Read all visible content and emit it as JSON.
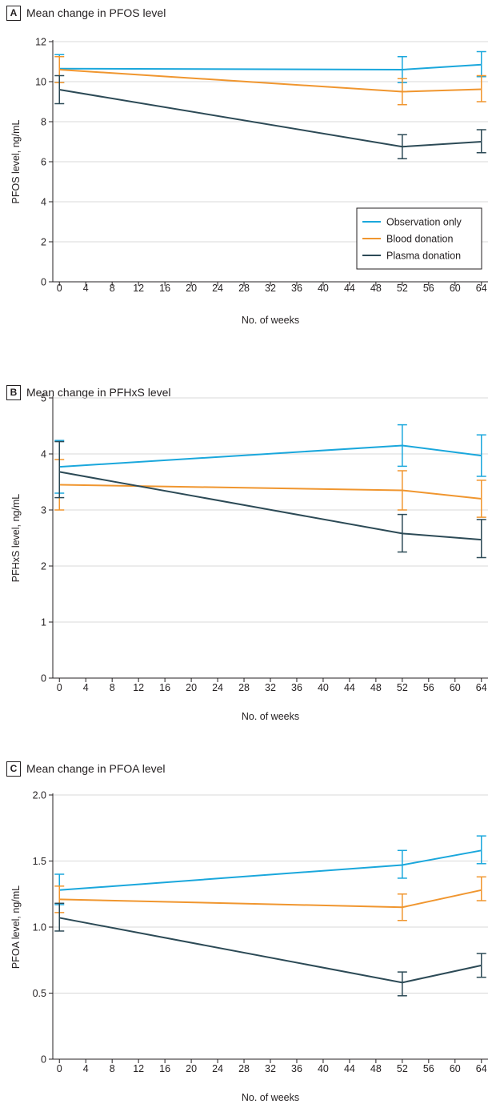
{
  "colors": {
    "observation": "#1aa7dc",
    "blood": "#f0962f",
    "plasma": "#2c4a56",
    "grid": "#d9d9d9",
    "axis": "#231f20"
  },
  "legend": {
    "items": [
      {
        "label": "Observation only",
        "color": "#1aa7dc"
      },
      {
        "label": "Blood donation",
        "color": "#f0962f"
      },
      {
        "label": "Plasma donation",
        "color": "#2c4a56"
      }
    ]
  },
  "chart_data": [
    {
      "id": "A",
      "type": "line",
      "title": "Mean change in PFOS level",
      "xlabel": "No. of weeks",
      "ylabel": "PFOS level, ng/mL",
      "xlim": [
        -1,
        65
      ],
      "ylim": [
        0,
        12
      ],
      "xticks": [
        0,
        4,
        8,
        12,
        16,
        20,
        24,
        28,
        32,
        36,
        40,
        44,
        48,
        52,
        56,
        60,
        64
      ],
      "yticks": [
        0,
        2,
        4,
        6,
        8,
        10,
        12
      ],
      "ytick_labels": [
        "0",
        "2",
        "4",
        "6",
        "8",
        "10",
        "12"
      ],
      "grid": true,
      "legend": "bottom-right",
      "series": [
        {
          "name": "Observation only",
          "color": "#1aa7dc",
          "x": [
            0,
            52,
            64
          ],
          "y": [
            10.65,
            10.6,
            10.85
          ],
          "lo": [
            9.95,
            9.95,
            10.25
          ],
          "hi": [
            11.35,
            11.25,
            11.5
          ]
        },
        {
          "name": "Blood donation",
          "color": "#f0962f",
          "x": [
            0,
            52,
            64
          ],
          "y": [
            10.6,
            9.5,
            9.62
          ],
          "lo": [
            9.95,
            8.85,
            9.0
          ],
          "hi": [
            11.25,
            10.15,
            10.3
          ]
        },
        {
          "name": "Plasma donation",
          "color": "#2c4a56",
          "x": [
            0,
            52,
            64
          ],
          "y": [
            9.6,
            6.75,
            7.0
          ],
          "lo": [
            8.9,
            6.15,
            6.45
          ],
          "hi": [
            10.3,
            7.35,
            7.6
          ]
        }
      ]
    },
    {
      "id": "B",
      "type": "line",
      "title": "Mean change in PFHxS level",
      "xlabel": "No. of weeks",
      "ylabel": "PFHxS level, ng/mL",
      "xlim": [
        -1,
        65
      ],
      "ylim": [
        0,
        5
      ],
      "xticks": [
        0,
        4,
        8,
        12,
        16,
        20,
        24,
        28,
        32,
        36,
        40,
        44,
        48,
        52,
        56,
        60,
        64
      ],
      "yticks": [
        0,
        1,
        2,
        3,
        4,
        5
      ],
      "ytick_labels": [
        "0",
        "1",
        "2",
        "3",
        "4",
        "5"
      ],
      "grid": true,
      "legend": "none",
      "series": [
        {
          "name": "Observation only",
          "color": "#1aa7dc",
          "x": [
            0,
            52,
            64
          ],
          "y": [
            3.77,
            4.15,
            3.97
          ],
          "lo": [
            3.3,
            3.78,
            3.6
          ],
          "hi": [
            4.24,
            4.52,
            4.34
          ]
        },
        {
          "name": "Blood donation",
          "color": "#f0962f",
          "x": [
            0,
            52,
            64
          ],
          "y": [
            3.45,
            3.35,
            3.2
          ],
          "lo": [
            3.0,
            3.0,
            2.87
          ],
          "hi": [
            3.9,
            3.7,
            3.53
          ]
        },
        {
          "name": "Plasma donation",
          "color": "#2c4a56",
          "x": [
            0,
            52,
            64
          ],
          "y": [
            3.68,
            2.58,
            2.47
          ],
          "lo": [
            3.22,
            2.25,
            2.15
          ],
          "hi": [
            4.22,
            2.92,
            2.83
          ]
        }
      ]
    },
    {
      "id": "C",
      "type": "line",
      "title": "Mean change in PFOA level",
      "xlabel": "No. of weeks",
      "ylabel": "PFOA level, ng/mL",
      "xlim": [
        -1,
        65
      ],
      "ylim": [
        0,
        2.0
      ],
      "xticks": [
        0,
        4,
        8,
        12,
        16,
        20,
        24,
        28,
        32,
        36,
        40,
        44,
        48,
        52,
        56,
        60,
        64
      ],
      "yticks": [
        0,
        0.5,
        1.0,
        1.5,
        2.0
      ],
      "ytick_labels": [
        "0",
        "0.5",
        "1.0",
        "1.5",
        "2.0"
      ],
      "grid": true,
      "legend": "none",
      "series": [
        {
          "name": "Observation only",
          "color": "#1aa7dc",
          "x": [
            0,
            52,
            64
          ],
          "y": [
            1.28,
            1.47,
            1.58
          ],
          "lo": [
            1.17,
            1.37,
            1.48
          ],
          "hi": [
            1.4,
            1.58,
            1.69
          ]
        },
        {
          "name": "Blood donation",
          "color": "#f0962f",
          "x": [
            0,
            52,
            64
          ],
          "y": [
            1.21,
            1.15,
            1.28
          ],
          "lo": [
            1.11,
            1.05,
            1.2
          ],
          "hi": [
            1.31,
            1.25,
            1.38
          ]
        },
        {
          "name": "Plasma donation",
          "color": "#2c4a56",
          "x": [
            0,
            52,
            64
          ],
          "y": [
            1.07,
            0.58,
            0.71
          ],
          "lo": [
            0.97,
            0.48,
            0.62
          ],
          "hi": [
            1.18,
            0.66,
            0.8
          ]
        }
      ]
    }
  ]
}
